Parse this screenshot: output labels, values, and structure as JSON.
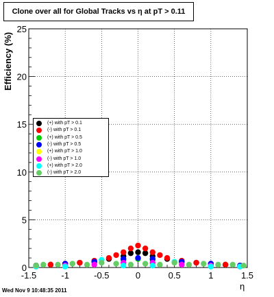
{
  "title": "Clone  over all for Global Tracks vs η at pT > 0.11",
  "footer": "Wed Nov  9 10:48:35 2011",
  "chart_data": {
    "type": "scatter",
    "xlabel": "η",
    "ylabel": "Efficiency (%)",
    "xlim": [
      -1.5,
      1.5
    ],
    "ylim": [
      0,
      25
    ],
    "xticks": [
      "-1.5",
      "-1",
      "-0.5",
      "0",
      "0.5",
      "1",
      "1.5"
    ],
    "yticks": [
      "0",
      "5",
      "10",
      "15",
      "20",
      "25"
    ],
    "grid": true,
    "legend_position": "left",
    "series": [
      {
        "name": "(+) with pT > 0.1",
        "color": "#000000",
        "x": [
          -1.4,
          -1.2,
          -1.0,
          -0.8,
          -0.6,
          -0.4,
          -0.2,
          -0.1,
          0.0,
          0.1,
          0.2,
          0.4,
          0.6,
          0.8,
          1.0,
          1.2,
          1.4
        ],
        "y": [
          0.2,
          0.3,
          0.4,
          0.5,
          0.7,
          0.9,
          1.2,
          1.5,
          1.6,
          1.5,
          1.2,
          0.9,
          0.7,
          0.5,
          0.4,
          0.3,
          0.2
        ]
      },
      {
        "name": "(-) with pT > 0.1",
        "color": "#ff0000",
        "x": [
          -1.4,
          -1.2,
          -1.0,
          -0.8,
          -0.6,
          -0.4,
          -0.3,
          -0.2,
          -0.1,
          0.0,
          0.1,
          0.2,
          0.3,
          0.4,
          0.6,
          0.8,
          1.0,
          1.2,
          1.4
        ],
        "y": [
          0.2,
          0.3,
          0.4,
          0.5,
          0.7,
          1.0,
          1.3,
          1.6,
          2.0,
          2.3,
          2.0,
          1.6,
          1.3,
          1.0,
          0.7,
          0.5,
          0.4,
          0.3,
          0.2
        ]
      },
      {
        "name": "(+) with pT > 0.5",
        "color": "#00cc00",
        "x": [
          -1.4,
          -1.0,
          -0.6,
          -0.2,
          0.0,
          0.2,
          0.6,
          1.0,
          1.4
        ],
        "y": [
          0.2,
          0.3,
          0.5,
          0.8,
          0.9,
          0.8,
          0.5,
          0.3,
          0.2
        ]
      },
      {
        "name": "(-) with pT > 0.5",
        "color": "#0000ff",
        "x": [
          -1.4,
          -1.0,
          -0.6,
          -0.2,
          0.0,
          0.2,
          0.6,
          1.0,
          1.4
        ],
        "y": [
          0.2,
          0.4,
          0.6,
          0.9,
          1.0,
          0.9,
          0.6,
          0.4,
          0.2
        ]
      },
      {
        "name": "(+) with pT > 1.0",
        "color": "#ffff00",
        "x": [
          -1.4,
          -1.0,
          -0.6,
          -0.2,
          0.2,
          0.6,
          1.0,
          1.4
        ],
        "y": [
          0.1,
          0.2,
          0.3,
          0.4,
          0.4,
          0.3,
          0.2,
          0.1
        ]
      },
      {
        "name": "(-) with pT > 1.0",
        "color": "#ff00ff",
        "x": [
          -1.4,
          -1.0,
          -0.6,
          -0.2,
          0.2,
          0.6,
          1.0,
          1.4
        ],
        "y": [
          0.1,
          0.2,
          0.3,
          0.5,
          0.5,
          0.3,
          0.2,
          0.1
        ]
      },
      {
        "name": "(+) with pT > 2.0",
        "color": "#00ffff",
        "x": [
          -1.4,
          -1.0,
          -0.5,
          -0.2,
          0.2,
          0.5,
          1.0,
          1.4
        ],
        "y": [
          0.1,
          0.1,
          0.8,
          0.2,
          0.2,
          0.6,
          0.1,
          0.1
        ]
      },
      {
        "name": "(-) with pT > 2.0",
        "color": "#66cc66",
        "x": [
          -1.4,
          -1.3,
          -1.1,
          -0.9,
          -0.7,
          -0.5,
          -0.3,
          -0.1,
          0.1,
          0.3,
          0.5,
          0.7,
          0.9,
          1.1,
          1.3,
          1.45
        ],
        "y": [
          0.2,
          0.3,
          0.3,
          0.4,
          0.3,
          0.5,
          0.4,
          0.3,
          0.4,
          0.3,
          0.5,
          0.3,
          0.4,
          0.3,
          0.3,
          0.2
        ]
      }
    ]
  }
}
